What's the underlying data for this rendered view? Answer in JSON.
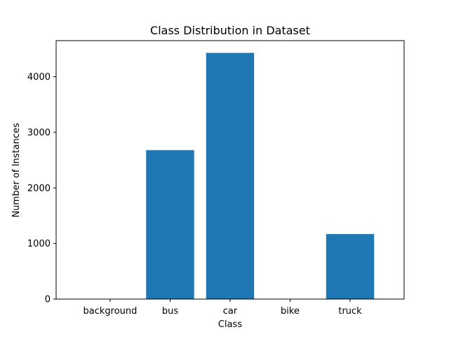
{
  "chart_data": {
    "type": "bar",
    "title": "Class Distribution in Dataset",
    "xlabel": "Class",
    "ylabel": "Number of Instances",
    "categories": [
      "background",
      "bus",
      "car",
      "bike",
      "truck"
    ],
    "values": [
      0,
      2680,
      4430,
      0,
      1170
    ],
    "ylim": [
      0,
      4650
    ],
    "yticks": [
      0,
      1000,
      2000,
      3000,
      4000
    ],
    "bar_color": "#1f77b4",
    "grid": false,
    "legend": "none"
  }
}
